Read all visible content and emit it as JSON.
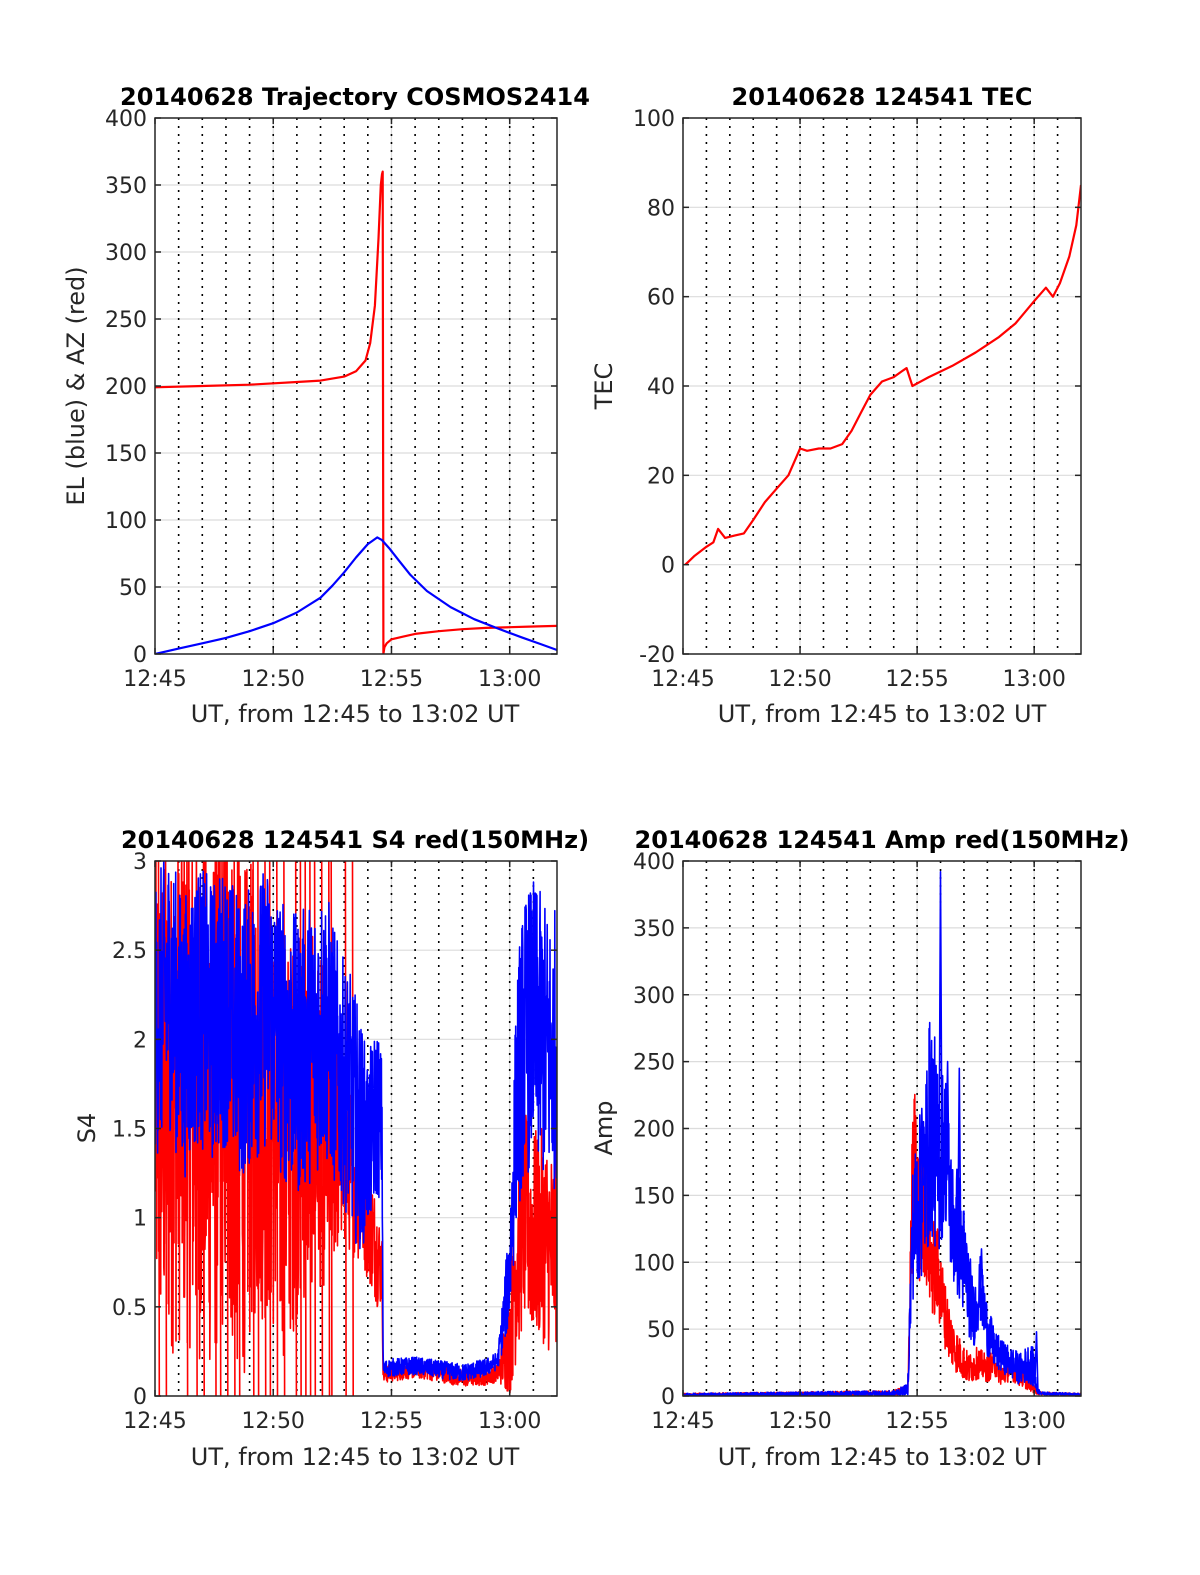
{
  "chart_data": [
    {
      "id": "trajectory",
      "type": "line",
      "title": "20140628 Trajectory COSMOS2414",
      "xlabel": "UT, from 12:45 to 13:02 UT",
      "ylabel": "EL (blue) & AZ (red)",
      "xlim": [
        0,
        17
      ],
      "ylim": [
        0,
        400
      ],
      "xticks": [
        0,
        5,
        10,
        15
      ],
      "xticklabels": [
        "12:45",
        "12:50",
        "12:55",
        "13:00"
      ],
      "yticks": [
        0,
        50,
        100,
        150,
        200,
        250,
        300,
        350,
        400
      ],
      "yticklabels": [
        "0",
        "50",
        "100",
        "150",
        "200",
        "250",
        "300",
        "350",
        "400"
      ],
      "grid": true,
      "series": [
        {
          "color": "#ff0000",
          "x": [
            0,
            2,
            4,
            6,
            7,
            8,
            8.5,
            8.9,
            9.1,
            9.3,
            9.45,
            9.55,
            9.6,
            9.63,
            9.66,
            9.7,
            9.8,
            10,
            10.5,
            11,
            12,
            13,
            14,
            15,
            16,
            17
          ],
          "y": [
            199,
            200,
            201,
            203,
            204,
            207,
            211,
            219,
            232,
            260,
            310,
            350,
            358,
            360,
            0,
            5,
            8,
            11,
            13,
            15,
            17,
            18.5,
            19.5,
            20,
            20.5,
            21
          ]
        },
        {
          "color": "#0000ff",
          "x": [
            0,
            1,
            2,
            3,
            4,
            5,
            6,
            7,
            7.5,
            8,
            8.5,
            9,
            9.4,
            9.6,
            9.9,
            10.3,
            10.8,
            11.5,
            12.5,
            13.5,
            14.5,
            15.5,
            16.3,
            17
          ],
          "y": [
            0,
            4,
            8,
            12,
            17,
            23,
            31,
            42,
            51,
            61,
            72,
            82,
            87,
            85,
            79,
            70,
            59,
            47,
            35,
            26,
            19,
            12.5,
            7.5,
            3
          ]
        }
      ]
    },
    {
      "id": "tec",
      "type": "line",
      "title": "20140628 124541 TEC",
      "xlabel": "UT, from 12:45 to 13:02 UT",
      "ylabel": "TEC",
      "xlim": [
        0,
        17
      ],
      "ylim": [
        -20,
        100
      ],
      "xticks": [
        0,
        5,
        10,
        15
      ],
      "xticklabels": [
        "12:45",
        "12:50",
        "12:55",
        "13:00"
      ],
      "yticks": [
        -20,
        0,
        20,
        40,
        60,
        80,
        100
      ],
      "yticklabels": [
        "-20",
        "0",
        "20",
        "40",
        "60",
        "80",
        "100"
      ],
      "grid": true,
      "series": [
        {
          "color": "#ff0000",
          "x": [
            0.1,
            0.5,
            1,
            1.3,
            1.5,
            1.8,
            2.2,
            2.6,
            3,
            3.5,
            4,
            4.5,
            5,
            5.3,
            5.8,
            6.3,
            6.8,
            7.2,
            7.6,
            8,
            8.5,
            9,
            9.4,
            9.55,
            9.8,
            10.5,
            11.5,
            12.5,
            13.5,
            14.2,
            14.6,
            15,
            15.5,
            15.8,
            16.1,
            16.5,
            16.8,
            17
          ],
          "y": [
            0,
            2,
            4,
            5,
            8,
            6,
            6.5,
            7,
            10,
            14,
            17,
            20,
            26,
            25.5,
            26,
            26,
            27,
            30,
            34,
            38,
            41,
            42,
            43.5,
            44,
            40,
            42,
            44.5,
            47.5,
            51,
            54,
            56.5,
            59,
            62,
            60,
            63,
            69,
            76,
            85
          ]
        }
      ]
    },
    {
      "id": "s4",
      "type": "line",
      "title": "20140628 124541 S4 red(150MHz)",
      "xlabel": "UT, from 12:45 to 13:02 UT",
      "ylabel": "S4",
      "xlim": [
        0,
        17
      ],
      "ylim": [
        0,
        3
      ],
      "xticks": [
        0,
        5,
        10,
        15
      ],
      "xticklabels": [
        "12:45",
        "12:50",
        "12:55",
        "13:00"
      ],
      "yticks": [
        0,
        0.5,
        1,
        1.5,
        2,
        2.5,
        3
      ],
      "yticklabels": [
        "0",
        "0.5",
        "1",
        "1.5",
        "2",
        "2.5",
        "3"
      ],
      "grid": true,
      "series": [
        {
          "color": "#ff0000",
          "x": [
            0,
            0.6,
            1.2,
            1.8,
            2.4,
            3,
            3.6,
            4.2,
            4.8,
            5.4,
            6,
            6.6,
            7.2,
            7.8,
            8.2,
            8.6,
            9,
            9.4,
            9.6,
            9.65,
            10,
            11,
            12,
            13,
            14,
            14.5,
            15,
            15.3,
            15.6,
            16,
            16.4,
            16.8,
            17
          ],
          "y": [
            1.7,
            1.6,
            1.8,
            1.7,
            1.6,
            1.9,
            1.5,
            1.7,
            1.6,
            1.4,
            1.5,
            1.6,
            1.5,
            1.4,
            1.3,
            1.2,
            1.0,
            0.8,
            0.7,
            0.12,
            0.13,
            0.15,
            0.13,
            0.1,
            0.11,
            0.13,
            0.3,
            0.8,
            1.0,
            0.9,
            0.9,
            0.8,
            0.9
          ],
          "noise": [
            1.4,
            1.4,
            1.5,
            1.5,
            1.5,
            1.5,
            1.5,
            1.3,
            1.2,
            1.2,
            1.1,
            1.0,
            0.9,
            0.6,
            0.5,
            0.45,
            0.35,
            0.3,
            0.2,
            0.05,
            0.05,
            0.05,
            0.05,
            0.05,
            0.05,
            0.05,
            0.3,
            0.6,
            0.6,
            0.6,
            0.6,
            0.6,
            0.6
          ],
          "spikes_x": [
            0.15,
            0.45,
            1.35,
            1.75,
            2.05,
            2.55,
            2.75,
            3.05,
            3.35,
            3.55,
            4.15,
            4.35,
            4.65,
            4.85,
            5.15,
            5.45,
            5.95,
            6.15,
            6.35,
            6.55,
            6.75,
            7.05,
            7.35,
            7.45,
            8.05,
            8.35
          ]
        },
        {
          "color": "#0000ff",
          "x": [
            0,
            0.6,
            1.2,
            1.8,
            2.4,
            3,
            3.6,
            4.2,
            4.8,
            5.4,
            6,
            6.6,
            7.2,
            7.8,
            8.2,
            8.6,
            9,
            9.4,
            9.6,
            9.65,
            10,
            11,
            12,
            13,
            14,
            14.5,
            15,
            15.3,
            15.6,
            16,
            16.4,
            16.8,
            17
          ],
          "y": [
            2.1,
            2.3,
            2.0,
            2.2,
            2.1,
            2.2,
            2.0,
            2.1,
            2.2,
            2.0,
            1.9,
            2.0,
            2.1,
            1.8,
            1.7,
            1.5,
            1.4,
            1.6,
            1.5,
            0.15,
            0.16,
            0.17,
            0.15,
            0.13,
            0.16,
            0.2,
            0.7,
            1.7,
            2.0,
            2.1,
            2.0,
            1.9,
            2.0
          ],
          "noise": [
            0.8,
            0.8,
            0.8,
            0.8,
            0.8,
            0.8,
            0.8,
            0.8,
            0.8,
            0.8,
            0.8,
            0.8,
            0.8,
            0.7,
            0.7,
            0.7,
            0.5,
            0.5,
            0.4,
            0.05,
            0.05,
            0.05,
            0.05,
            0.05,
            0.05,
            0.05,
            0.3,
            0.7,
            0.8,
            0.8,
            0.8,
            0.8,
            0.8
          ]
        }
      ]
    },
    {
      "id": "amp",
      "type": "line",
      "title": "20140628 124541 Amp red(150MHz)",
      "xlabel": "UT, from 12:45 to 13:02 UT",
      "ylabel": "Amp",
      "xlim": [
        0,
        17
      ],
      "ylim": [
        0,
        400
      ],
      "xticks": [
        0,
        5,
        10,
        15
      ],
      "xticklabels": [
        "12:45",
        "12:50",
        "12:55",
        "13:00"
      ],
      "yticks": [
        0,
        50,
        100,
        150,
        200,
        250,
        300,
        350,
        400
      ],
      "yticklabels": [
        "0",
        "50",
        "100",
        "150",
        "200",
        "250",
        "300",
        "350",
        "400"
      ],
      "grid": true,
      "series": [
        {
          "color": "#ff0000",
          "x": [
            0,
            9,
            9.6,
            9.8,
            9.9,
            10.1,
            10.3,
            10.6,
            10.9,
            11.2,
            11.5,
            11.8,
            12.2,
            12.6,
            13,
            13.3,
            13.6,
            14,
            14.4,
            14.8,
            15,
            15.2,
            17
          ],
          "y": [
            1,
            2,
            5,
            150,
            170,
            130,
            140,
            100,
            90,
            60,
            40,
            30,
            20,
            25,
            20,
            25,
            15,
            20,
            15,
            10,
            5,
            2,
            1
          ],
          "noise": [
            1,
            2,
            4,
            60,
            60,
            50,
            50,
            40,
            35,
            25,
            20,
            15,
            12,
            12,
            10,
            10,
            8,
            8,
            8,
            6,
            3,
            1,
            1
          ]
        },
        {
          "color": "#0000ff",
          "x": [
            0,
            9,
            9.6,
            9.8,
            10.0,
            10.3,
            10.6,
            10.9,
            11.2,
            11.5,
            11.8,
            12.1,
            12.4,
            12.7,
            13.0,
            13.3,
            13.6,
            14,
            14.4,
            14.8,
            15,
            15.1,
            15.3,
            17
          ],
          "y": [
            1,
            2,
            5,
            120,
            140,
            160,
            210,
            170,
            190,
            130,
            120,
            90,
            60,
            80,
            50,
            35,
            30,
            25,
            20,
            25,
            20,
            5,
            2,
            1
          ],
          "noise": [
            1,
            2,
            4,
            50,
            60,
            70,
            90,
            70,
            60,
            50,
            50,
            40,
            25,
            25,
            20,
            15,
            12,
            12,
            12,
            15,
            15,
            3,
            1,
            1
          ],
          "peaks": [
            [
              11.0,
              392
            ],
            [
              11.3,
              250
            ],
            [
              11.8,
              245
            ],
            [
              10.2,
              215
            ],
            [
              12.75,
              110
            ],
            [
              15.1,
              48
            ]
          ]
        }
      ]
    }
  ]
}
